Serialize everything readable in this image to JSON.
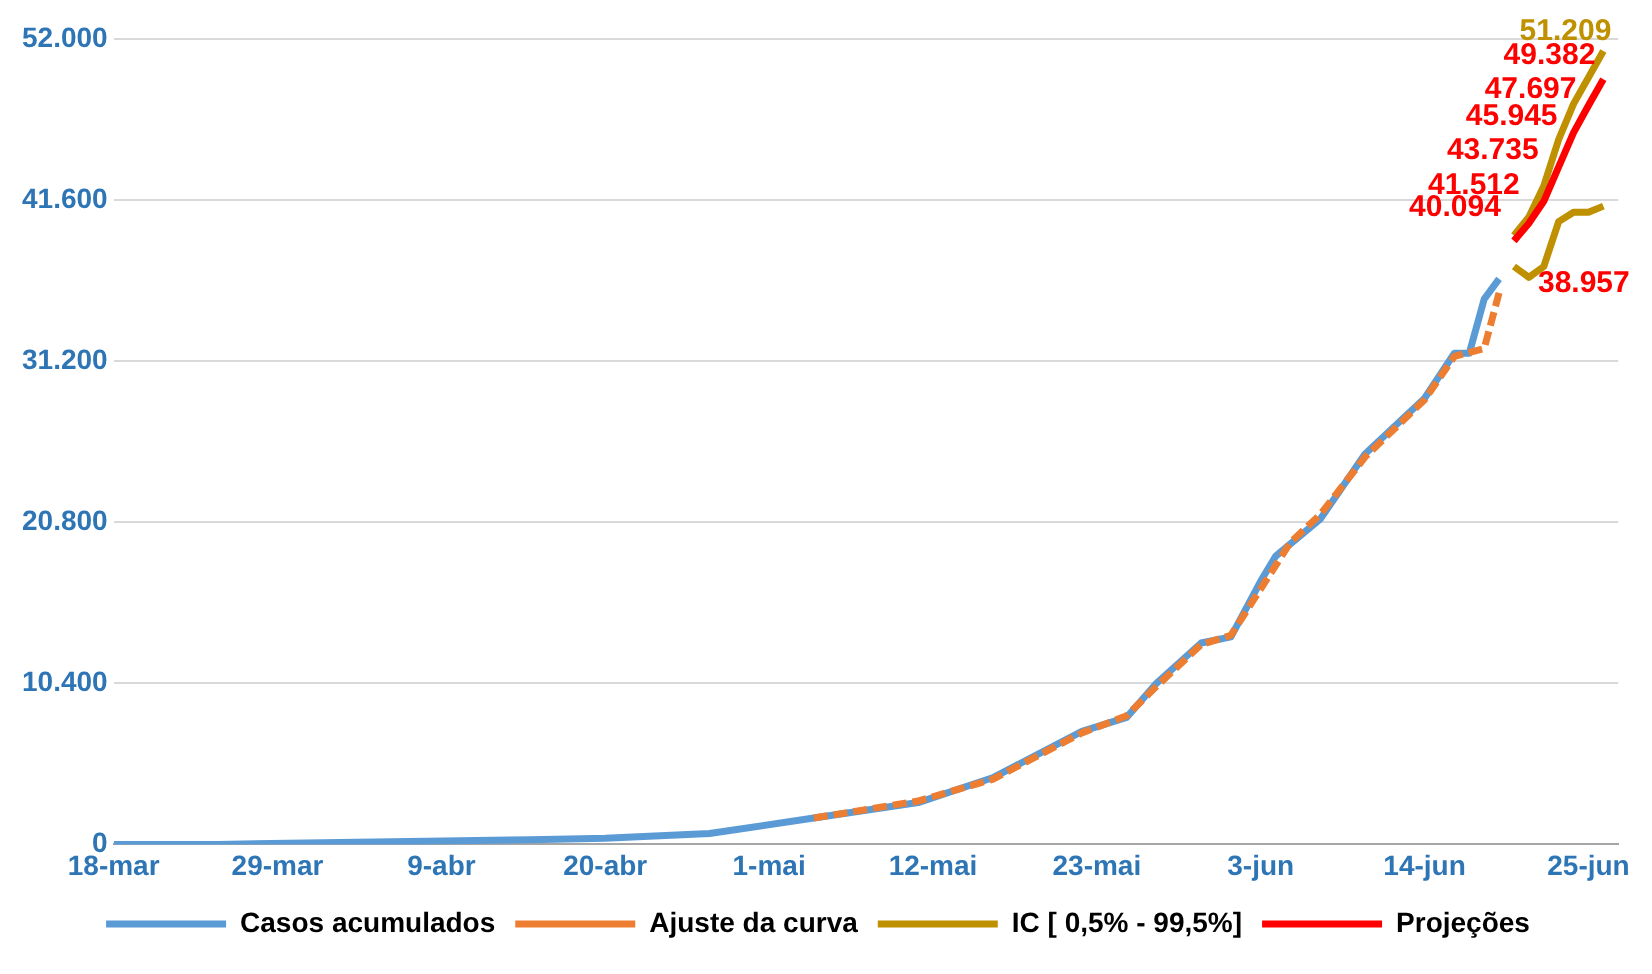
{
  "chart_data": {
    "type": "line",
    "legend": "bottom",
    "grid": "y",
    "marker": "none",
    "xlim": [
      "--03-18",
      "--06-27"
    ],
    "xticks": [
      {
        "value": "--03-18",
        "label": "18-mar"
      },
      {
        "value": "--03-29",
        "label": "29-mar"
      },
      {
        "value": "--04-09",
        "label": "9-abr"
      },
      {
        "value": "--04-20",
        "label": "20-abr"
      },
      {
        "value": "--05-01",
        "label": "1-mai"
      },
      {
        "value": "--05-12",
        "label": "12-mai"
      },
      {
        "value": "--05-23",
        "label": "23-mai"
      },
      {
        "value": "--06-03",
        "label": "3-jun"
      },
      {
        "value": "--06-14",
        "label": "14-jun"
      },
      {
        "value": "--06-25",
        "label": "25-jun"
      }
    ],
    "ylim": [
      0,
      52000
    ],
    "yticks": [
      0,
      {
        "value": 10400,
        "label": "10.400"
      },
      {
        "value": 20800,
        "label": "20.800"
      },
      {
        "value": 31200,
        "label": "31.200"
      },
      {
        "value": 41600,
        "label": "41.600"
      },
      {
        "value": 52000,
        "label": "52.000"
      }
    ],
    "series": [
      {
        "name": "Casos acumulados",
        "color": "#5b9bd5",
        "line_style": "solid",
        "x": [
          "--03-18",
          "--03-25",
          "--04-01",
          "--04-08",
          "--04-15",
          "--04-20",
          "--04-27",
          "--05-04",
          "--05-11",
          "--05-16",
          "--05-22",
          "--05-25",
          "--05-27",
          "--05-30",
          "--06-01",
          "--06-03",
          "--06-04",
          "--06-07",
          "--06-10",
          "--06-14",
          "--06-16",
          "--06-17",
          "--06-18",
          "--06-19"
        ],
        "values": [
          0,
          0,
          100,
          200,
          300,
          400,
          700,
          1700,
          2700,
          4300,
          7300,
          8200,
          10400,
          13000,
          13400,
          17000,
          18600,
          21000,
          25200,
          28800,
          31700,
          31700,
          35200,
          36500
        ]
      },
      {
        "name": "Ajuste da curva",
        "color": "#ed7d31",
        "line_style": "dashed",
        "x": [
          "--05-04",
          "--05-11",
          "--05-16",
          "--05-22",
          "--05-25",
          "--05-27",
          "--05-30",
          "--06-01",
          "--06-03",
          "--06-05",
          "--06-07",
          "--06-10",
          "--06-14",
          "--06-16",
          "--06-18",
          "--06-19"
        ],
        "values": [
          1700,
          2800,
          4200,
          7200,
          8300,
          10200,
          12900,
          13500,
          16500,
          19500,
          21300,
          25000,
          28700,
          31500,
          32000,
          35600
        ]
      },
      {
        "name": "IC [ 0,5% - 99,5%]",
        "color": "#bf9000",
        "line_style": "solid",
        "x": [
          "--06-20",
          "--06-21",
          "--06-22",
          "--06-23",
          "--06-24",
          "--06-25",
          "--06-26"
        ],
        "values": [
          39300,
          40500,
          42500,
          45500,
          47800,
          49500,
          51209
        ],
        "value_labels": [
          null,
          null,
          null,
          null,
          null,
          null,
          "51.209"
        ]
      },
      {
        "color": "#bf9000",
        "line_style": "solid",
        "x": [
          "--06-20",
          "--06-21",
          "--06-22",
          "--06-23",
          "--06-24",
          "--06-25",
          "--06-26"
        ],
        "values": [
          37300,
          36600,
          37300,
          40200,
          40800,
          40800,
          41200
        ]
      },
      {
        "name": "Projeções",
        "color": "#ff0000",
        "line_style": "solid",
        "x": [
          "--06-20",
          "--06-21",
          "--06-22",
          "--06-23",
          "--06-24",
          "--06-25",
          "--06-26"
        ],
        "values": [
          38957,
          40094,
          41512,
          43735,
          45945,
          47697,
          49382
        ],
        "value_labels": [
          "38.957",
          "40.094",
          "41.512",
          "43.735",
          "45.945",
          "47.697",
          "49.382"
        ]
      }
    ]
  }
}
